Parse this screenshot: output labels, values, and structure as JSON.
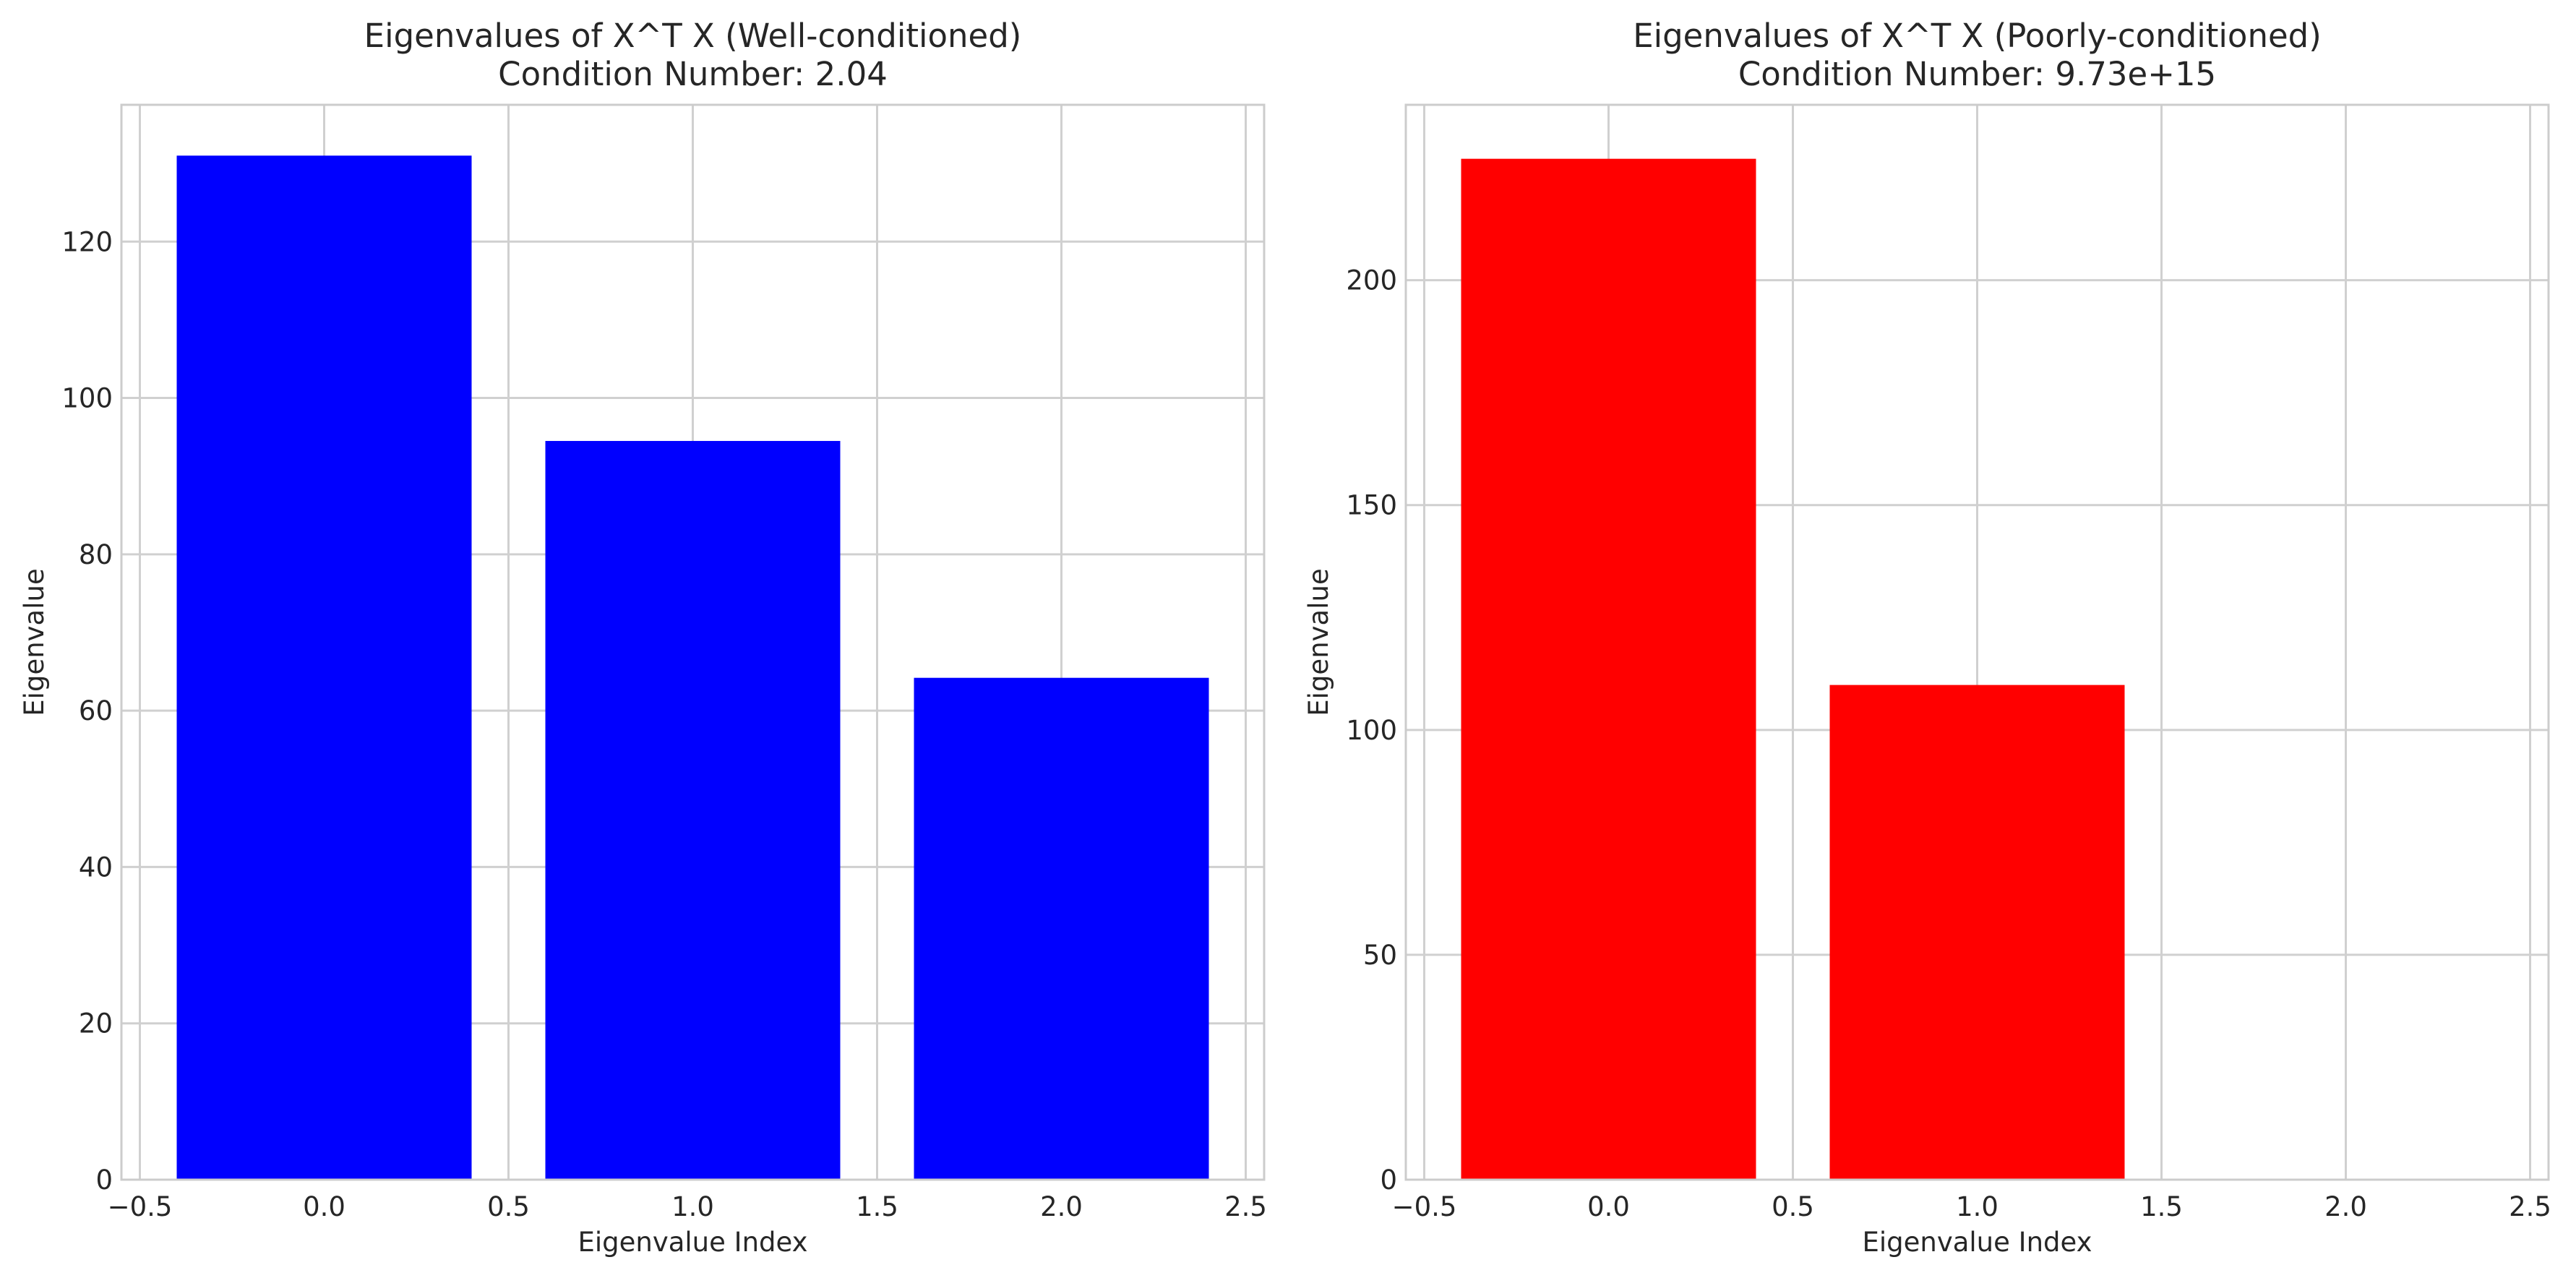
{
  "chart_data": [
    {
      "type": "bar",
      "title": [
        "Eigenvalues of X^T X (Well-conditioned)",
        "Condition Number: 2.04"
      ],
      "xlabel": "Eigenvalue Index",
      "ylabel": "Eigenvalue",
      "x": [
        0,
        1,
        2
      ],
      "values": [
        131.0,
        94.5,
        64.2
      ],
      "bar_width": 0.8,
      "color": "#0000ff",
      "xlim": [
        -0.55,
        2.55
      ],
      "ylim": [
        0,
        137.5
      ],
      "xticks": [
        -0.5,
        0.0,
        0.5,
        1.0,
        1.5,
        2.0,
        2.5
      ],
      "xtick_labels": [
        "−0.5",
        "0.0",
        "0.5",
        "1.0",
        "1.5",
        "2.0",
        "2.5"
      ],
      "yticks": [
        0,
        20,
        40,
        60,
        80,
        100,
        120
      ],
      "ytick_labels": [
        "0",
        "20",
        "40",
        "60",
        "80",
        "100",
        "120"
      ],
      "grid": true
    },
    {
      "type": "bar",
      "title": [
        "Eigenvalues of X^T X (Poorly-conditioned)",
        "Condition Number: 9.73e+15"
      ],
      "xlabel": "Eigenvalue Index",
      "ylabel": "Eigenvalue",
      "x": [
        0,
        1,
        2
      ],
      "values": [
        227.0,
        110.0,
        0.0
      ],
      "bar_width": 0.8,
      "color": "#ff0000",
      "xlim": [
        -0.55,
        2.55
      ],
      "ylim": [
        0,
        239
      ],
      "xticks": [
        -0.5,
        0.0,
        0.5,
        1.0,
        1.5,
        2.0,
        2.5
      ],
      "xtick_labels": [
        "−0.5",
        "0.0",
        "0.5",
        "1.0",
        "1.5",
        "2.0",
        "2.5"
      ],
      "yticks": [
        0,
        50,
        100,
        150,
        200
      ],
      "ytick_labels": [
        "0",
        "50",
        "100",
        "150",
        "200"
      ],
      "grid": true
    }
  ]
}
